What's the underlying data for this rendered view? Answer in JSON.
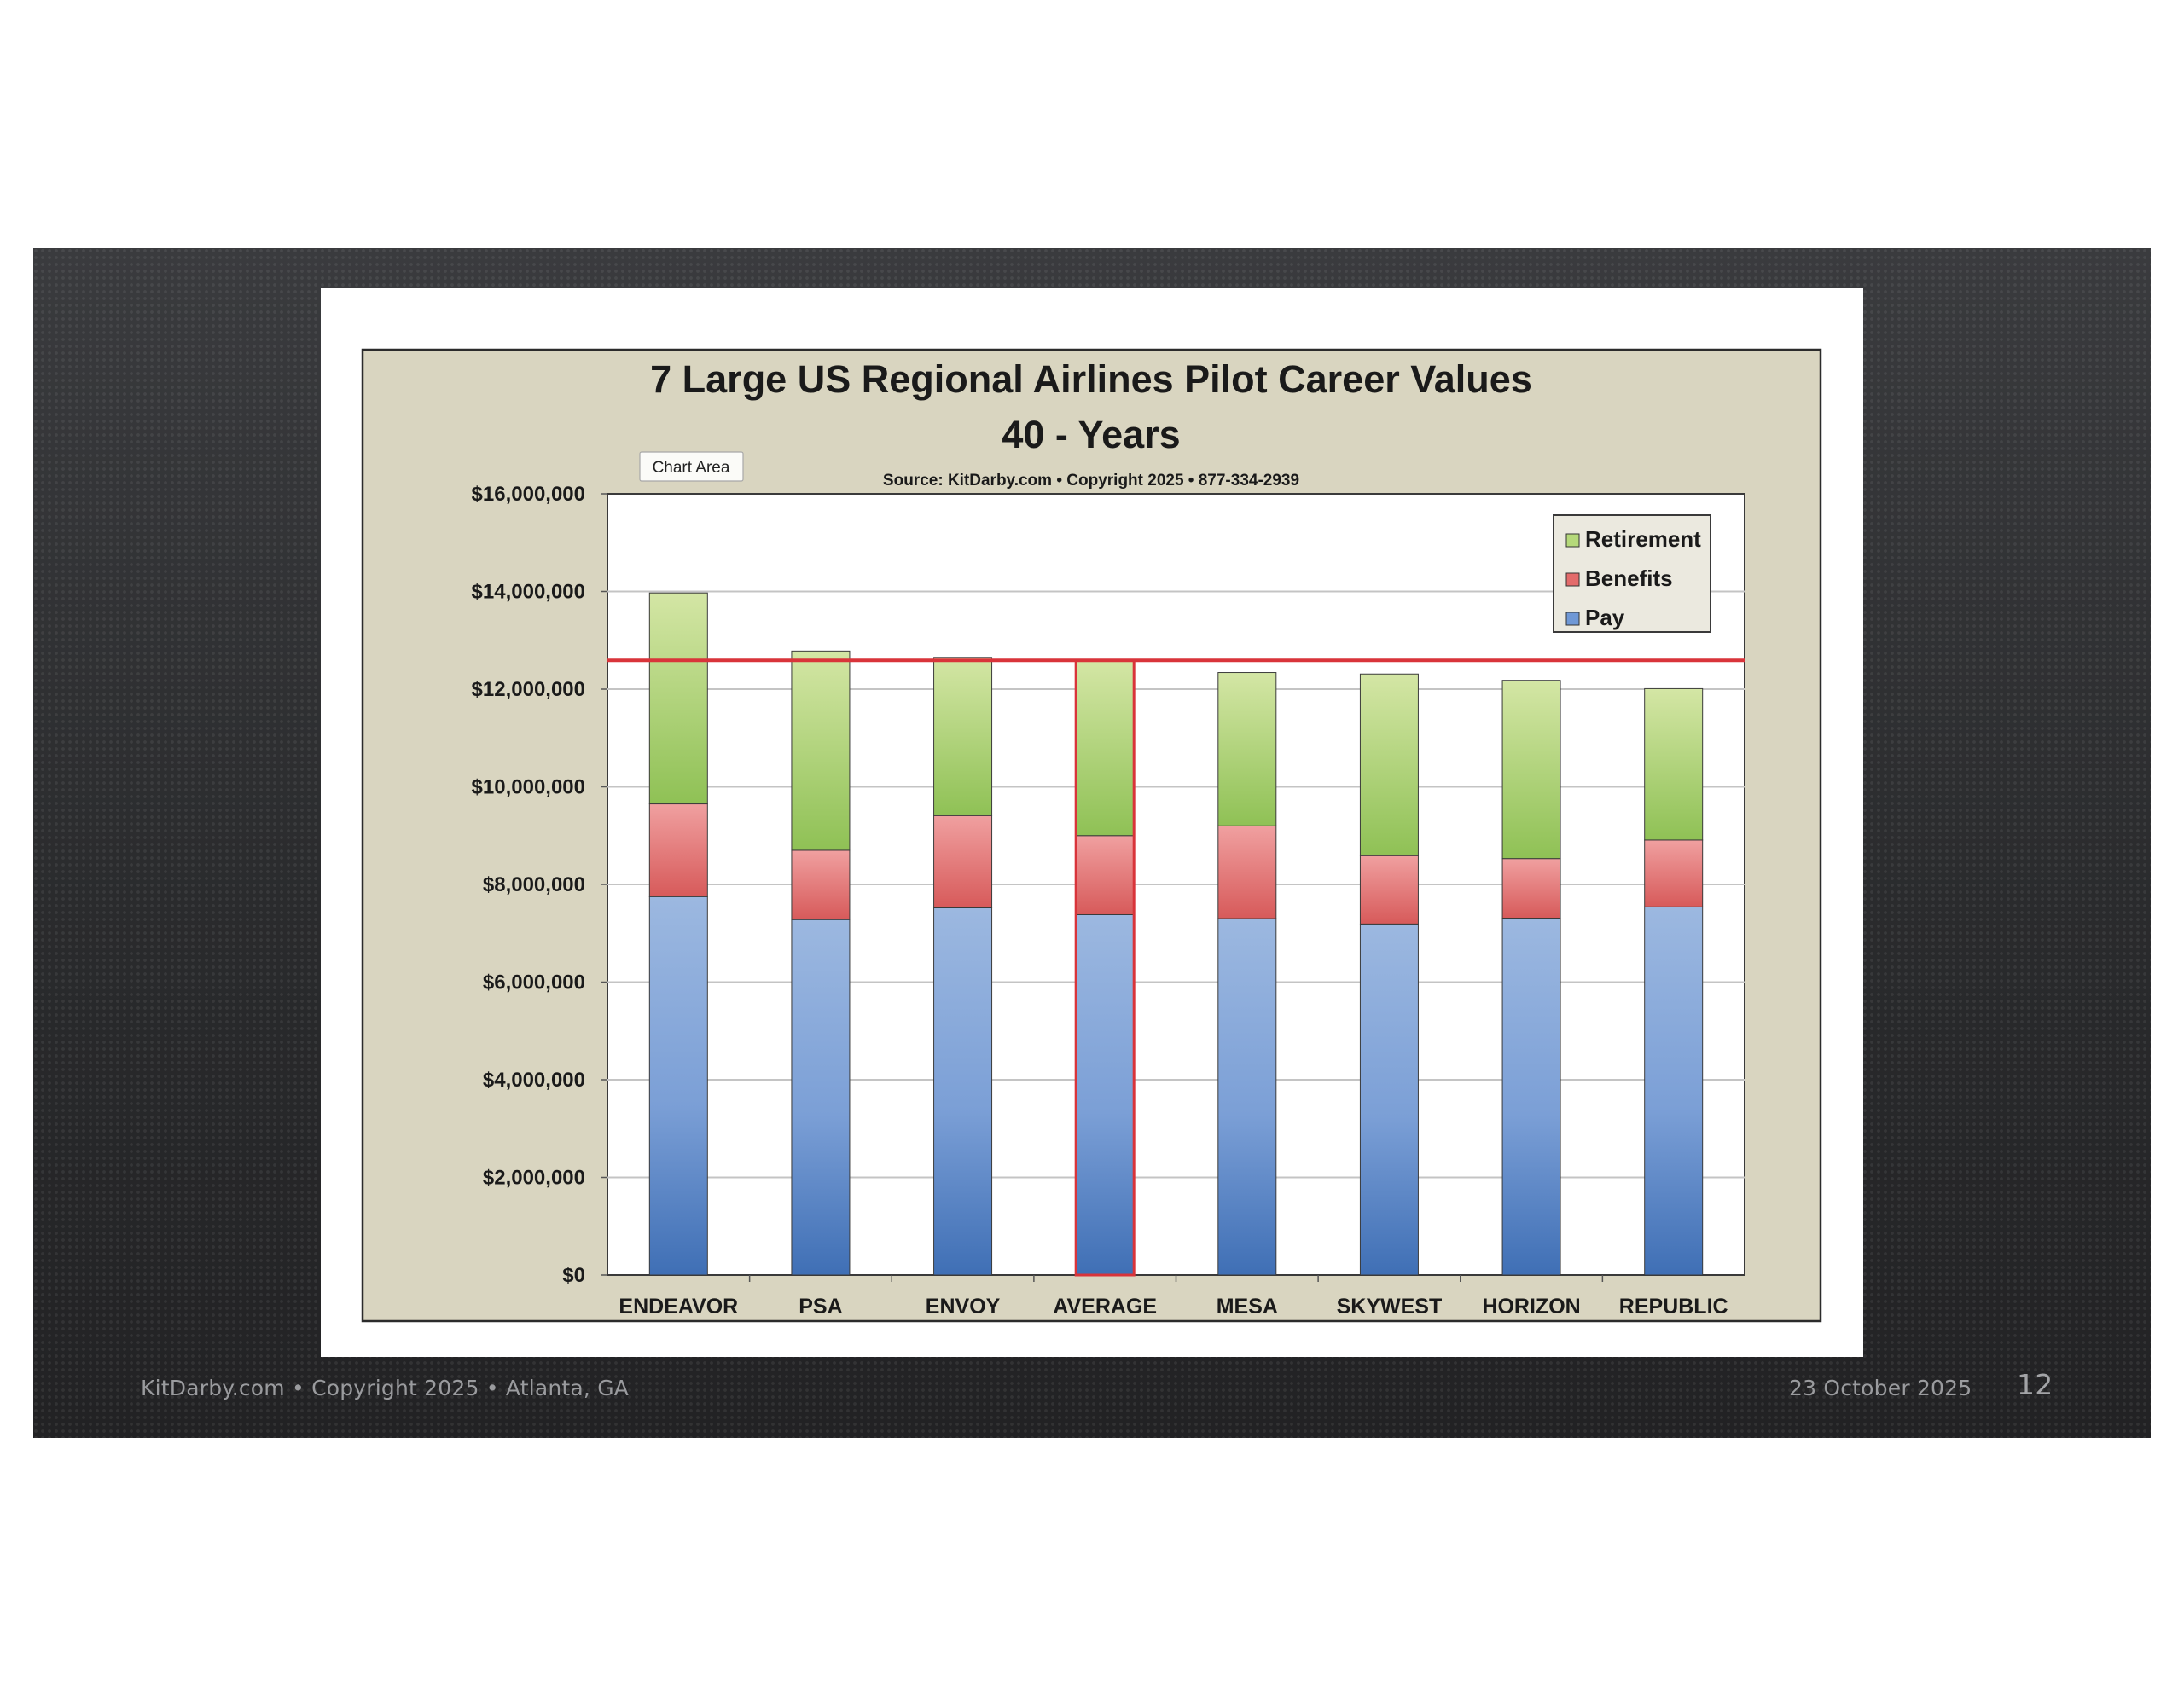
{
  "footer": {
    "left": "KitDarby.com • Copyright 2025 • Atlanta, GA",
    "date": "23 October 2025",
    "page": "12"
  },
  "tooltip": "Chart Area",
  "chart_data": {
    "type": "bar",
    "stacked": true,
    "title": "7 Large US Regional Airlines Pilot Career Values",
    "subtitle": "40 - Years",
    "source": "Source: KitDarby.com • Copyright 2025 • 877-334-2939",
    "categories": [
      "ENDEAVOR",
      "PSA",
      "ENVOY",
      "AVERAGE",
      "MESA",
      "SKYWEST",
      "HORIZON",
      "REPUBLIC"
    ],
    "series": [
      {
        "name": "Pay",
        "color": "#4a78bf",
        "values": [
          7750000,
          7280000,
          7520000,
          7380000,
          7300000,
          7190000,
          7310000,
          7540000
        ]
      },
      {
        "name": "Benefits",
        "color": "#d9534f",
        "values": [
          1900000,
          1420000,
          1890000,
          1620000,
          1900000,
          1400000,
          1220000,
          1370000
        ]
      },
      {
        "name": "Retirement",
        "color": "#9cc75a",
        "values": [
          4320000,
          4080000,
          3240000,
          3590000,
          3140000,
          3720000,
          3650000,
          3100000
        ]
      }
    ],
    "highlight_category": "AVERAGE",
    "reference_line": {
      "value": 12590000,
      "color": "#d9343a"
    },
    "ylim": [
      0,
      16000000
    ],
    "yticks": [
      0,
      2000000,
      4000000,
      6000000,
      8000000,
      10000000,
      12000000,
      14000000,
      16000000
    ],
    "ytick_labels": [
      "$0",
      "$2,000,000",
      "$4,000,000",
      "$6,000,000",
      "$8,000,000",
      "$10,000,000",
      "$12,000,000",
      "$14,000,000",
      "$16,000,000"
    ],
    "xlabel": "",
    "ylabel": "",
    "grid": true,
    "legend": {
      "position": "top-right",
      "order": [
        "Retirement",
        "Benefits",
        "Pay"
      ]
    }
  }
}
